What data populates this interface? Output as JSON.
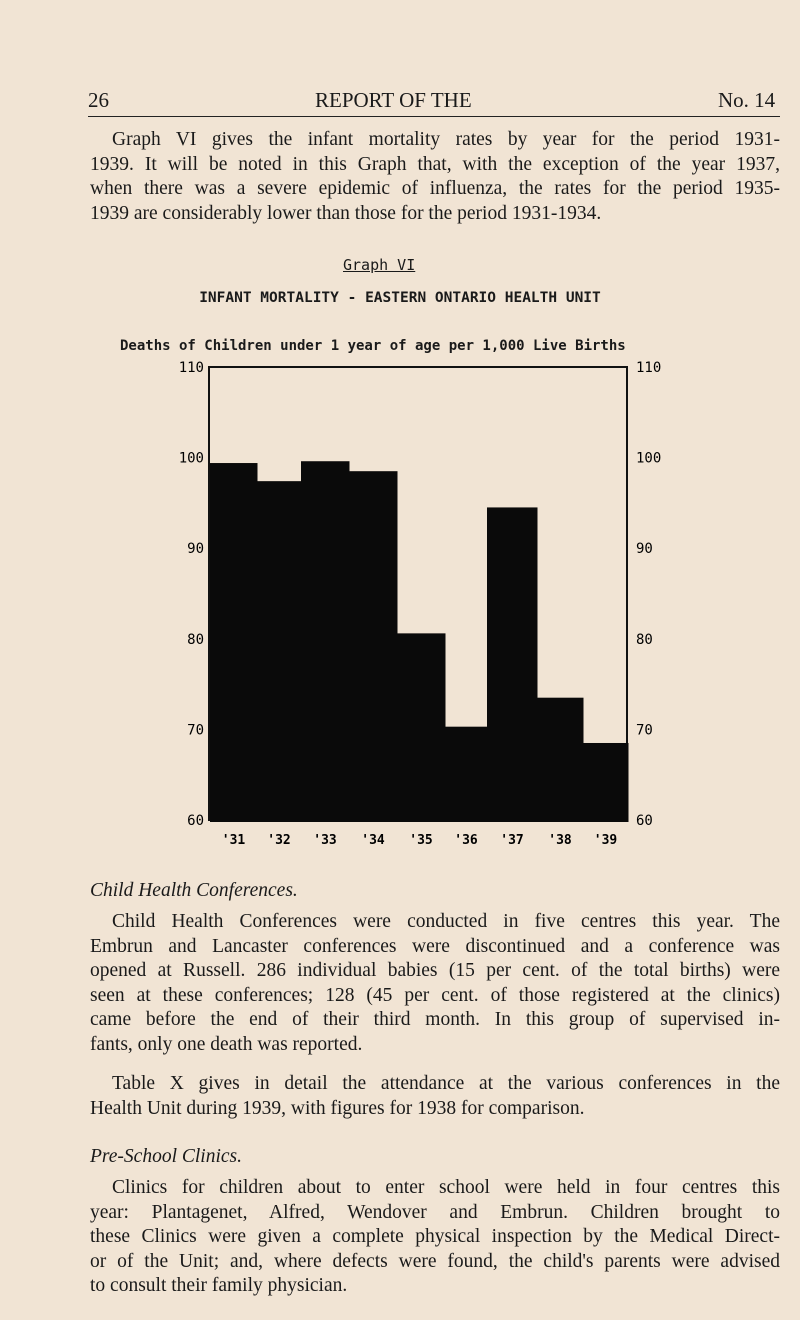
{
  "header": {
    "page_number": "26",
    "title": "REPORT OF THE",
    "issue": "No. 14"
  },
  "intro": [
    "Graph VI gives the infant mortality rates by year for the period 1931-",
    "1939. It will be noted in this Graph that, with the exception of the year 1937,",
    "when there was a severe epidemic of influenza, the rates for the period 1935-",
    "1939 are considerably lower than those for the period 1931-1934."
  ],
  "chart_data": {
    "type": "bar",
    "caption": "Graph VI",
    "title": "INFANT MORTALITY - EASTERN ONTARIO HEALTH UNIT",
    "ylabel": "Deaths of Children under 1 year of age per 1,000 Live Births",
    "categories": [
      "'31",
      "'32",
      "'33",
      "'34",
      "'35",
      "'36",
      "'37",
      "'38",
      "'39"
    ],
    "values": [
      99.4,
      97.4,
      99.6,
      98.5,
      80.6,
      70.3,
      94.5,
      73.5,
      68.5
    ],
    "ylim": [
      60,
      110
    ],
    "yticks": [
      "60",
      "70",
      "80",
      "90",
      "100",
      "110"
    ],
    "bar_color": "#0a0a0a",
    "grid": false
  },
  "section1": {
    "heading": "Child Health Conferences.",
    "p1": [
      "Child Health Conferences were conducted in five centres this year. The",
      "Embrun and Lancaster conferences were discontinued and a conference was",
      "opened at Russell. 286 individual babies (15 per cent. of the total births) were",
      "seen at these conferences; 128 (45 per cent. of those registered at the clinics)",
      "came before the end of their third month. In this group of supervised in-",
      "fants, only one death was reported."
    ],
    "p2": [
      "Table X gives in detail the attendance at the various conferences in the",
      "Health Unit during 1939, with figures for 1938 for comparison."
    ]
  },
  "section2": {
    "heading": "Pre-School Clinics.",
    "p1": [
      "Clinics for children about to enter school were held in four centres this",
      "year: Plantagenet, Alfred, Wendover and Embrun. Children brought to",
      "these Clinics were given a complete physical inspection by the Medical Direct-",
      "or of the Unit; and, where defects were found, the child's parents were advised",
      "to consult their family physician."
    ]
  }
}
